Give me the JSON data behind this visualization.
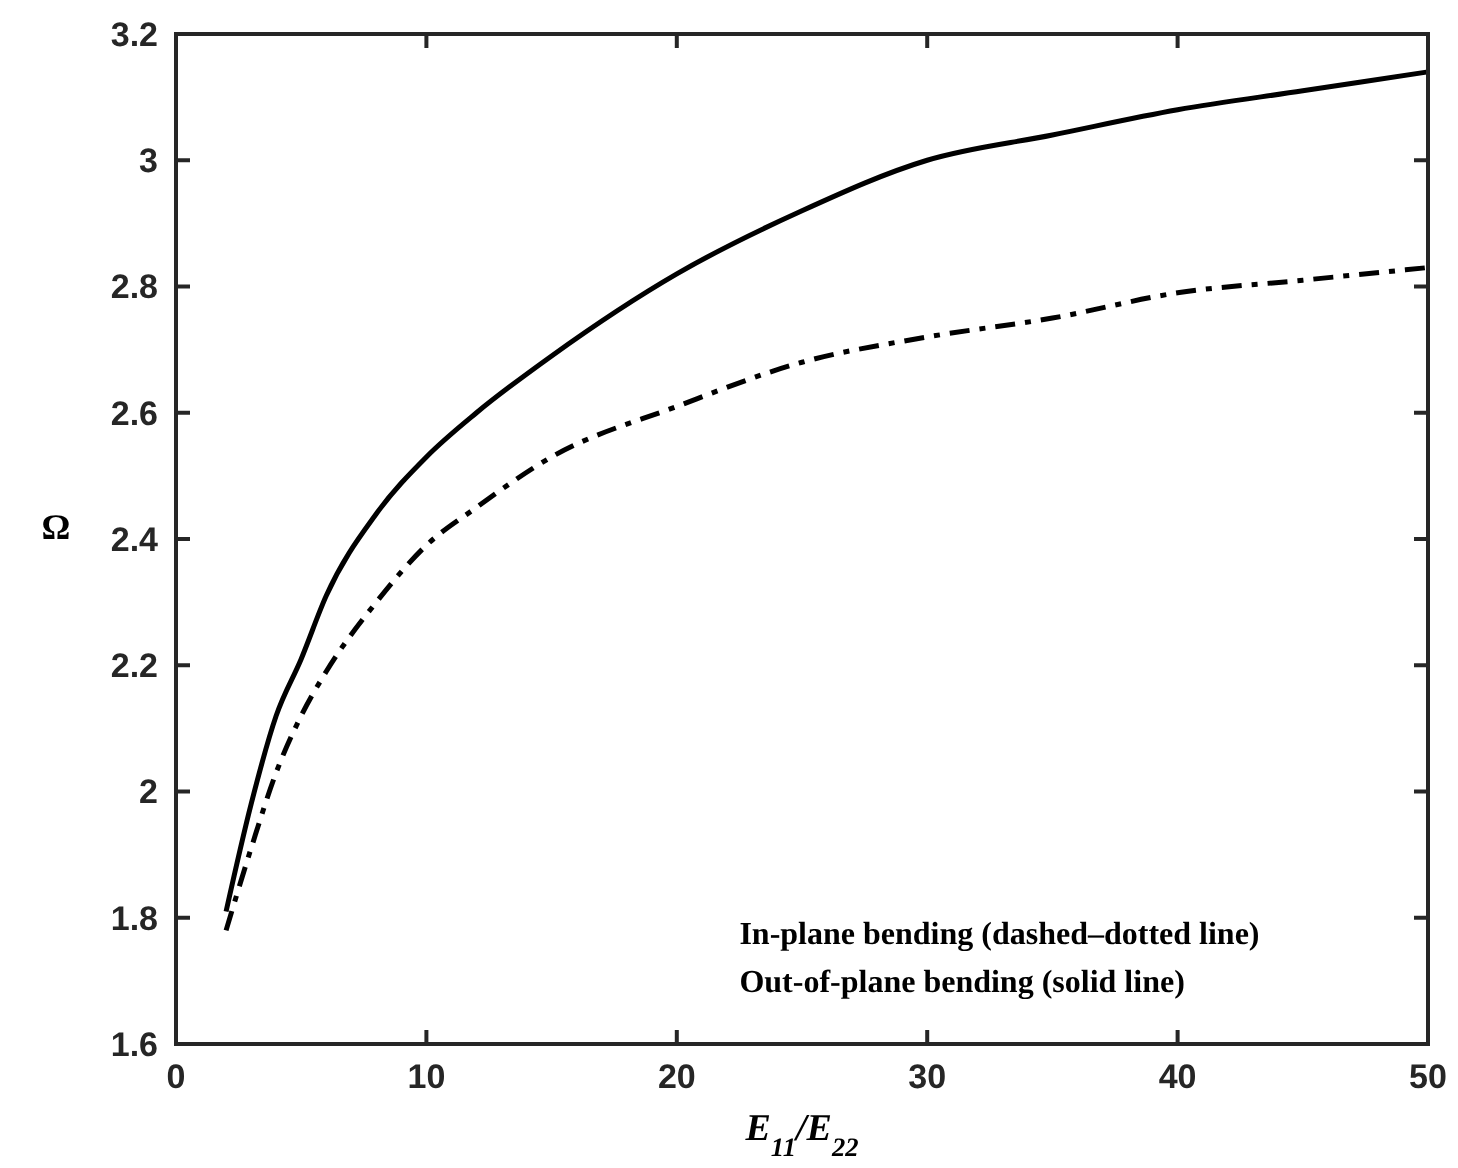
{
  "chart_data": {
    "type": "line",
    "xlabel": "E$_{11}$/E$_{22}$",
    "ylabel": "Ω",
    "xlim": [
      0,
      50
    ],
    "xticks": [
      0,
      10,
      20,
      30,
      40,
      50
    ],
    "ylim": [
      1.6,
      3.2
    ],
    "yticks": [
      1.6,
      1.8,
      2,
      2.2,
      2.4,
      2.6,
      2.8,
      3,
      3.2
    ],
    "grid": false,
    "series": [
      {
        "color": "#000000",
        "line_style": "solid",
        "x": [
          2,
          3,
          4,
          5,
          6,
          8,
          10,
          12,
          15,
          20,
          25,
          30,
          35,
          40,
          45,
          50
        ],
        "values": [
          1.81,
          1.98,
          2.12,
          2.21,
          2.31,
          2.44,
          2.53,
          2.6,
          2.69,
          2.82,
          2.92,
          3.0,
          3.04,
          3.08,
          3.11,
          3.14
        ]
      },
      {
        "color": "#000000",
        "line_style": "dashdot",
        "x": [
          2,
          3,
          4,
          5,
          6,
          8,
          10,
          12,
          15,
          20,
          25,
          30,
          35,
          40,
          45,
          50
        ],
        "values": [
          1.78,
          1.91,
          2.03,
          2.12,
          2.19,
          2.3,
          2.39,
          2.45,
          2.53,
          2.61,
          2.68,
          2.72,
          2.75,
          2.79,
          2.81,
          2.83
        ]
      }
    ],
    "annotations": [
      "In-plane bending (dashed–dotted line)",
      "Out-of-plane bending (solid line)"
    ]
  }
}
